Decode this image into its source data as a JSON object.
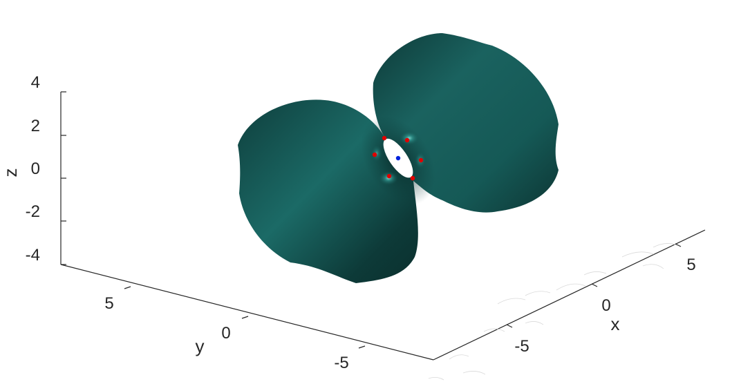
{
  "chart_data": {
    "type": "surface",
    "xlabel": "x",
    "ylabel": "y",
    "zlabel": "z",
    "z_ticks": [
      "4",
      "2",
      "0",
      "-2",
      "-4"
    ],
    "y_ticks": [
      "5",
      "0",
      "-5"
    ],
    "x_ticks": [
      "5",
      "0",
      "-5"
    ],
    "surface_color": "#165e5a",
    "surface_dark": "#0c3533",
    "surface_highlight": "#5fc7bd",
    "red_points": 7,
    "blue_points": 1,
    "point_colors": {
      "red": "#e00000",
      "blue": "#0022dd"
    }
  }
}
